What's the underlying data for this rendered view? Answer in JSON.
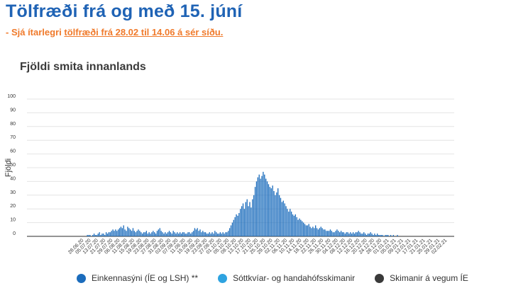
{
  "header": {
    "title": "Tölfræði frá og með 15. júní",
    "subtitle_prefix": "- Sjá ítarlegri ",
    "subtitle_link": "tölfræði frá 28.02 til 14.06 á sér síðu."
  },
  "chart_data": {
    "type": "bar",
    "title": "Fjöldi smita innanlands",
    "ylabel": "Fjöldi",
    "ylim": [
      0,
      100
    ],
    "yticks": [
      0,
      10,
      20,
      30,
      40,
      50,
      60,
      70,
      80,
      90,
      100
    ],
    "grid": true,
    "legend_position": "bottom",
    "colors": {
      "series1": "#1b6cbc",
      "series2": "#2ea3e0",
      "series3": "#3a3a3a"
    },
    "x_tick_labels": [
      "28.06.20",
      "05.07.20",
      "13.07.20",
      "21.07.20",
      "29.07.20",
      "06.08.20",
      "11.08.20",
      "15.08.20",
      "19.08.20",
      "23.08.20",
      "27.08.20",
      "31.08.20",
      "03.09.20",
      "07.09.20",
      "11.09.20",
      "15.09.20",
      "19.09.20",
      "23.09.20",
      "27.09.20",
      "01.10.20",
      "05.10.20",
      "09.10.20",
      "13.10.20",
      "17.10.20",
      "21.10.20",
      "25.10.20",
      "29.10.20",
      "02.11.20",
      "06.11.20",
      "10.11.20",
      "14.11.20",
      "18.11.20",
      "22.11.20",
      "26.11.20",
      "30.11.20",
      "04.12.20",
      "08.12.20",
      "12.12.20",
      "16.12.20",
      "20.12.20",
      "24.12.20",
      "28.12.20",
      "01.01.21",
      "05.01.21",
      "09.01.21",
      "13.01.21",
      "17.01.21",
      "21.01.21",
      "25.01.21",
      "29.01.21",
      "02.02.21"
    ],
    "series": [
      {
        "name": "Einkennasýni (ÍE og LSH) **",
        "values": [
          0,
          0,
          0,
          0,
          0,
          0,
          0,
          0,
          1,
          1,
          1,
          0,
          1,
          2,
          1,
          1,
          2,
          3,
          1,
          2,
          2,
          1,
          3,
          2,
          3,
          3,
          4,
          5,
          4,
          5,
          4,
          5,
          6,
          7,
          6,
          8,
          5,
          4,
          7,
          6,
          5,
          4,
          6,
          4,
          3,
          4,
          5,
          4,
          3,
          2,
          3,
          3,
          4,
          2,
          3,
          2,
          3,
          4,
          3,
          2,
          4,
          5,
          6,
          4,
          3,
          2,
          3,
          2,
          3,
          4,
          3,
          2,
          4,
          3,
          2,
          3,
          2,
          3,
          2,
          3,
          3,
          2,
          2,
          3,
          3,
          2,
          3,
          4,
          6,
          5,
          6,
          4,
          5,
          3,
          4,
          3,
          3,
          2,
          2,
          3,
          2,
          3,
          2,
          4,
          3,
          2,
          2,
          3,
          2,
          3,
          2,
          3,
          3,
          4,
          6,
          8,
          10,
          12,
          14,
          16,
          15,
          17,
          20,
          22,
          24,
          20,
          25,
          27,
          22,
          25,
          21,
          27,
          30,
          36,
          40,
          43,
          45,
          42,
          44,
          47,
          45,
          42,
          40,
          38,
          36,
          35,
          37,
          33,
          30,
          32,
          35,
          30,
          28,
          25,
          26,
          24,
          22,
          20,
          18,
          20,
          18,
          16,
          15,
          16,
          14,
          12,
          13,
          12,
          11,
          10,
          9,
          8,
          8,
          9,
          7,
          6,
          7,
          6,
          8,
          6,
          5,
          6,
          7,
          6,
          5,
          5,
          4,
          4,
          4,
          5,
          4,
          3,
          3,
          4,
          5,
          4,
          3,
          4,
          3,
          3,
          2,
          3,
          3,
          2,
          3,
          2,
          3,
          2,
          3,
          3,
          4,
          3,
          2,
          2,
          3,
          2,
          1,
          2,
          2,
          3,
          2,
          1,
          2,
          1,
          2,
          1,
          1,
          1,
          1,
          0,
          1,
          1,
          1,
          0,
          1,
          0,
          1,
          0,
          0,
          1,
          0,
          0,
          0,
          0,
          0,
          0,
          0,
          0,
          0,
          0,
          0,
          0,
          0,
          0,
          0,
          0,
          0,
          0,
          0,
          0,
          0,
          0,
          0,
          0,
          0,
          0,
          0,
          0,
          0,
          0,
          0,
          0,
          0,
          0,
          0,
          0,
          0
        ]
      },
      {
        "name": "Sóttkvíar- og handahófsskimanir",
        "values": [
          0,
          0,
          0,
          0,
          0,
          0,
          0,
          0,
          0,
          0,
          0,
          0,
          0,
          0,
          0,
          0,
          0,
          0,
          0,
          0,
          0,
          0,
          0,
          0,
          0,
          0,
          0,
          0,
          0,
          0,
          0,
          0,
          0,
          0,
          0,
          0,
          0,
          0,
          0,
          0,
          0,
          0,
          0,
          0,
          0,
          0,
          0,
          0,
          0,
          0,
          0,
          0,
          0,
          0,
          0,
          0,
          0,
          0,
          0,
          0,
          0,
          0,
          0,
          0,
          0,
          0,
          0,
          0,
          0,
          0,
          0,
          0,
          0,
          0,
          0,
          0,
          0,
          0,
          0,
          0,
          0,
          0,
          0,
          0,
          0,
          0,
          0,
          0,
          0,
          0,
          0,
          0,
          0,
          0,
          0,
          0,
          0,
          0,
          0,
          0,
          0,
          0,
          0,
          0,
          0,
          0,
          0,
          0,
          0,
          0,
          0,
          0,
          0,
          0,
          0,
          0,
          0,
          0,
          0,
          0,
          0,
          0,
          0,
          0,
          0,
          0,
          0,
          0,
          0,
          0,
          0,
          0,
          0,
          0,
          0,
          0,
          0,
          0,
          0,
          0,
          0,
          0,
          0,
          0,
          0,
          0,
          0,
          0,
          0,
          0,
          0,
          0,
          0,
          0,
          0,
          0,
          0,
          0,
          0,
          0,
          0,
          0,
          0,
          0,
          0,
          0,
          0,
          0,
          0,
          0,
          0,
          0,
          0,
          0,
          0,
          0,
          0,
          0,
          0,
          0,
          0,
          0,
          0,
          0,
          0,
          0,
          0,
          0,
          0,
          0,
          0,
          0,
          0,
          0,
          0,
          0,
          0,
          0,
          0,
          0,
          0,
          0,
          0,
          0,
          0,
          0,
          0,
          0,
          0,
          0,
          0,
          0,
          0,
          0,
          0,
          0,
          0,
          0,
          0,
          0,
          0,
          0,
          0,
          0,
          0,
          0,
          0,
          0,
          0,
          0,
          0,
          0,
          0,
          0,
          0,
          0,
          0,
          0,
          0,
          0,
          0,
          0,
          0,
          0,
          0,
          0,
          0,
          0,
          0,
          0,
          0,
          0,
          0,
          0,
          0,
          0,
          0,
          0,
          0,
          0,
          0,
          0,
          0,
          0,
          0,
          0,
          0,
          0,
          0
        ]
      },
      {
        "name": "Skimanir á vegum ÍE",
        "values": [
          0,
          0,
          0,
          0,
          0,
          0,
          0,
          0,
          0,
          0,
          0,
          0,
          0,
          0,
          0,
          0,
          0,
          0,
          0,
          0,
          0,
          0,
          0,
          0,
          0,
          0,
          0,
          0,
          0,
          0,
          0,
          0,
          0,
          0,
          0,
          0,
          0,
          0,
          0,
          0,
          0,
          0,
          0,
          0,
          0,
          0,
          0,
          0,
          0,
          0,
          0,
          0,
          0,
          0,
          0,
          0,
          0,
          0,
          0,
          0,
          0,
          0,
          0,
          0,
          0,
          0,
          0,
          0,
          0,
          0,
          0,
          0,
          0,
          0,
          0,
          0,
          0,
          0,
          0,
          0,
          0,
          0,
          0,
          0,
          0,
          0,
          0,
          0,
          0,
          0,
          0,
          0,
          0,
          0,
          0,
          0,
          0,
          0,
          0,
          0,
          0,
          0,
          0,
          0,
          0,
          0,
          0,
          0,
          0,
          0,
          0,
          0,
          0,
          0,
          0,
          0,
          0,
          0,
          0,
          0,
          0,
          0,
          0,
          0,
          0,
          0,
          0,
          0,
          0,
          0,
          0,
          0,
          0,
          0,
          0,
          0,
          0,
          0,
          0,
          0,
          0,
          0,
          0,
          0,
          0,
          0,
          0,
          0,
          0,
          0,
          0,
          0,
          0,
          0,
          0,
          0,
          0,
          0,
          0,
          0,
          0,
          0,
          0,
          0,
          0,
          0,
          0,
          0,
          0,
          0,
          0,
          0,
          0,
          0,
          0,
          0,
          0,
          0,
          0,
          0,
          0,
          0,
          0,
          0,
          0,
          0,
          0,
          0,
          0,
          0,
          0,
          0,
          0,
          0,
          0,
          0,
          0,
          0,
          0,
          0,
          0,
          0,
          0,
          0,
          0,
          0,
          0,
          0,
          0,
          0,
          0,
          0,
          0,
          0,
          0,
          0,
          0,
          0,
          0,
          0,
          0,
          0,
          0,
          0,
          0,
          0,
          0,
          0,
          0,
          0,
          0,
          0,
          0,
          0,
          0,
          0,
          0,
          0,
          0,
          0,
          0,
          0,
          0,
          0,
          0,
          0,
          0,
          0,
          0,
          0,
          0,
          0,
          0,
          0,
          0,
          0,
          0,
          0,
          0,
          0,
          0,
          0,
          0,
          0,
          0,
          0,
          0,
          0,
          0,
          0
        ]
      }
    ]
  }
}
